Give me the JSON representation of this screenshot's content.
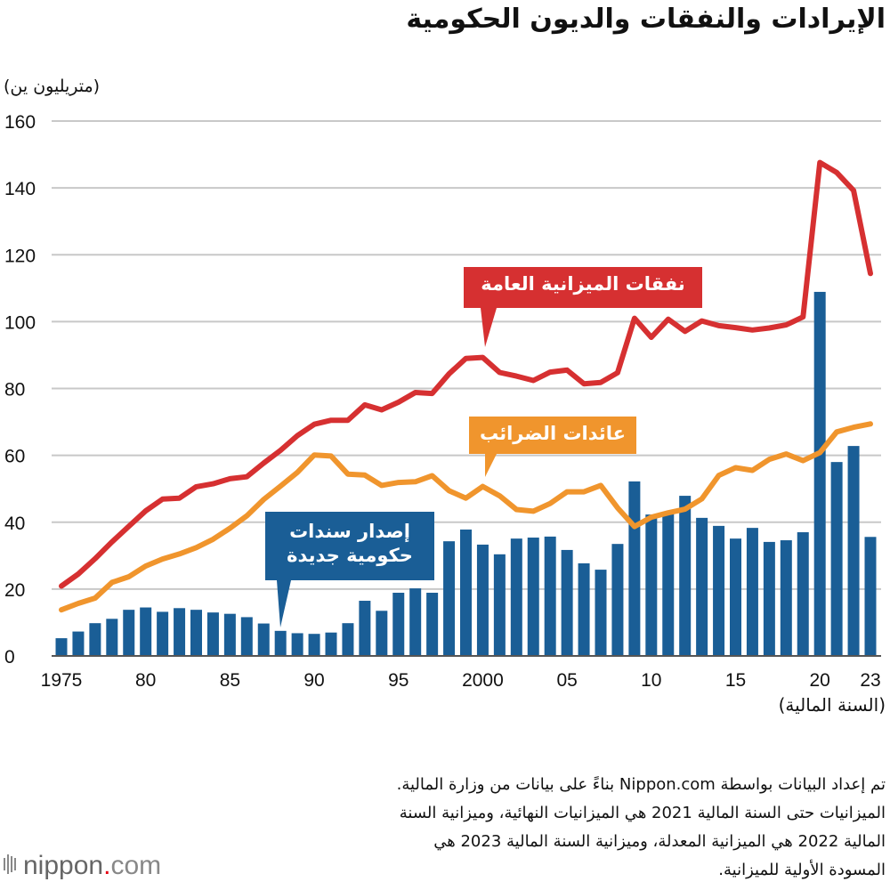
{
  "chart_data": {
    "type": "bar+line",
    "title": "الإيرادات والنفقات والديون الحكومية",
    "ylabel": "(متريليون ين)",
    "xlabel": "(السنة المالية)",
    "ylim": [
      0,
      160
    ],
    "yticks": [
      "0",
      "20",
      "40",
      "60",
      "80",
      "100",
      "120",
      "140",
      "160"
    ],
    "xticks": [
      {
        "year": 1975,
        "label": "1975"
      },
      {
        "year": 1980,
        "label": "80"
      },
      {
        "year": 1985,
        "label": "85"
      },
      {
        "year": 1990,
        "label": "90"
      },
      {
        "year": 1995,
        "label": "95"
      },
      {
        "year": 2000,
        "label": "2000"
      },
      {
        "year": 2005,
        "label": "05"
      },
      {
        "year": 2010,
        "label": "10"
      },
      {
        "year": 2015,
        "label": "15"
      },
      {
        "year": 2020,
        "label": "20"
      },
      {
        "year": 2023,
        "label": "23"
      }
    ],
    "grid": true,
    "years": [
      1975,
      1976,
      1977,
      1978,
      1979,
      1980,
      1981,
      1982,
      1983,
      1984,
      1985,
      1986,
      1987,
      1988,
      1989,
      1990,
      1991,
      1992,
      1993,
      1994,
      1995,
      1996,
      1997,
      1998,
      1999,
      2000,
      2001,
      2002,
      2003,
      2004,
      2005,
      2006,
      2007,
      2008,
      2009,
      2010,
      2011,
      2012,
      2013,
      2014,
      2015,
      2016,
      2017,
      2018,
      2019,
      2020,
      2021,
      2022,
      2023
    ],
    "series": [
      {
        "name": "نفقات الميزانية العامة",
        "type": "line",
        "color": "#d63031",
        "values": [
          20.9,
          24.5,
          29.1,
          34.1,
          38.8,
          43.4,
          46.9,
          47.2,
          50.6,
          51.5,
          53.0,
          53.6,
          57.7,
          61.5,
          65.9,
          69.3,
          70.5,
          70.5,
          75.1,
          73.6,
          75.9,
          78.8,
          78.5,
          84.4,
          89.0,
          89.3,
          84.8,
          83.7,
          82.4,
          84.9,
          85.5,
          81.4,
          81.8,
          84.7,
          101.0,
          95.3,
          100.7,
          97.1,
          100.2,
          98.8,
          98.2,
          97.5,
          98.1,
          99.0,
          101.4,
          147.6,
          144.6,
          139.2,
          114.4
        ]
      },
      {
        "name": "عائدات الضرائب",
        "type": "line",
        "color": "#f0952d",
        "values": [
          13.8,
          15.7,
          17.3,
          22.0,
          23.7,
          26.9,
          29.0,
          30.5,
          32.4,
          34.9,
          38.2,
          41.9,
          46.8,
          50.8,
          54.9,
          60.1,
          59.8,
          54.4,
          54.1,
          51.0,
          51.9,
          52.1,
          53.9,
          49.4,
          47.2,
          50.7,
          47.9,
          43.8,
          43.3,
          45.6,
          49.1,
          49.1,
          51.0,
          44.3,
          38.7,
          41.5,
          42.8,
          43.9,
          47.0,
          54.0,
          56.3,
          55.5,
          58.8,
          60.4,
          58.4,
          60.8,
          67.0,
          68.4,
          69.4
        ]
      },
      {
        "name": "إصدار سندات حكومية جديدة",
        "type": "bar",
        "color": "#1a5e96",
        "values": [
          5.3,
          7.3,
          9.8,
          11.1,
          13.8,
          14.5,
          13.2,
          14.3,
          13.8,
          13.0,
          12.6,
          11.6,
          9.7,
          7.5,
          6.8,
          6.6,
          7.0,
          9.8,
          16.5,
          13.5,
          18.9,
          20.2,
          18.9,
          34.3,
          37.8,
          33.3,
          30.4,
          35.1,
          35.4,
          35.7,
          31.7,
          27.7,
          25.8,
          33.5,
          52.2,
          42.3,
          42.8,
          47.9,
          41.3,
          38.9,
          35.1,
          38.3,
          34.1,
          34.6,
          37.0,
          108.9,
          58.0,
          62.8,
          35.6
        ]
      }
    ],
    "annotations": {
      "expenditure": "نفقات الميزانية العامة",
      "tax": "عائدات الضرائب",
      "bonds_line1": "إصدار سندات",
      "bonds_line2": "حكومية جديدة"
    }
  },
  "notes": [
    "تم إعداد البيانات بواسطة Nippon.com بناءً على بيانات من وزارة المالية.",
    "الميزانيات حتى السنة المالية 2021 هي الميزانيات النهائية، وميزانية السنة",
    "المالية 2022 هي الميزانية المعدلة، وميزانية السنة المالية 2023 هي",
    "المسودة الأولية للميزانية."
  ],
  "logo": {
    "text": "nippon.com",
    "accent": "#e60012"
  }
}
